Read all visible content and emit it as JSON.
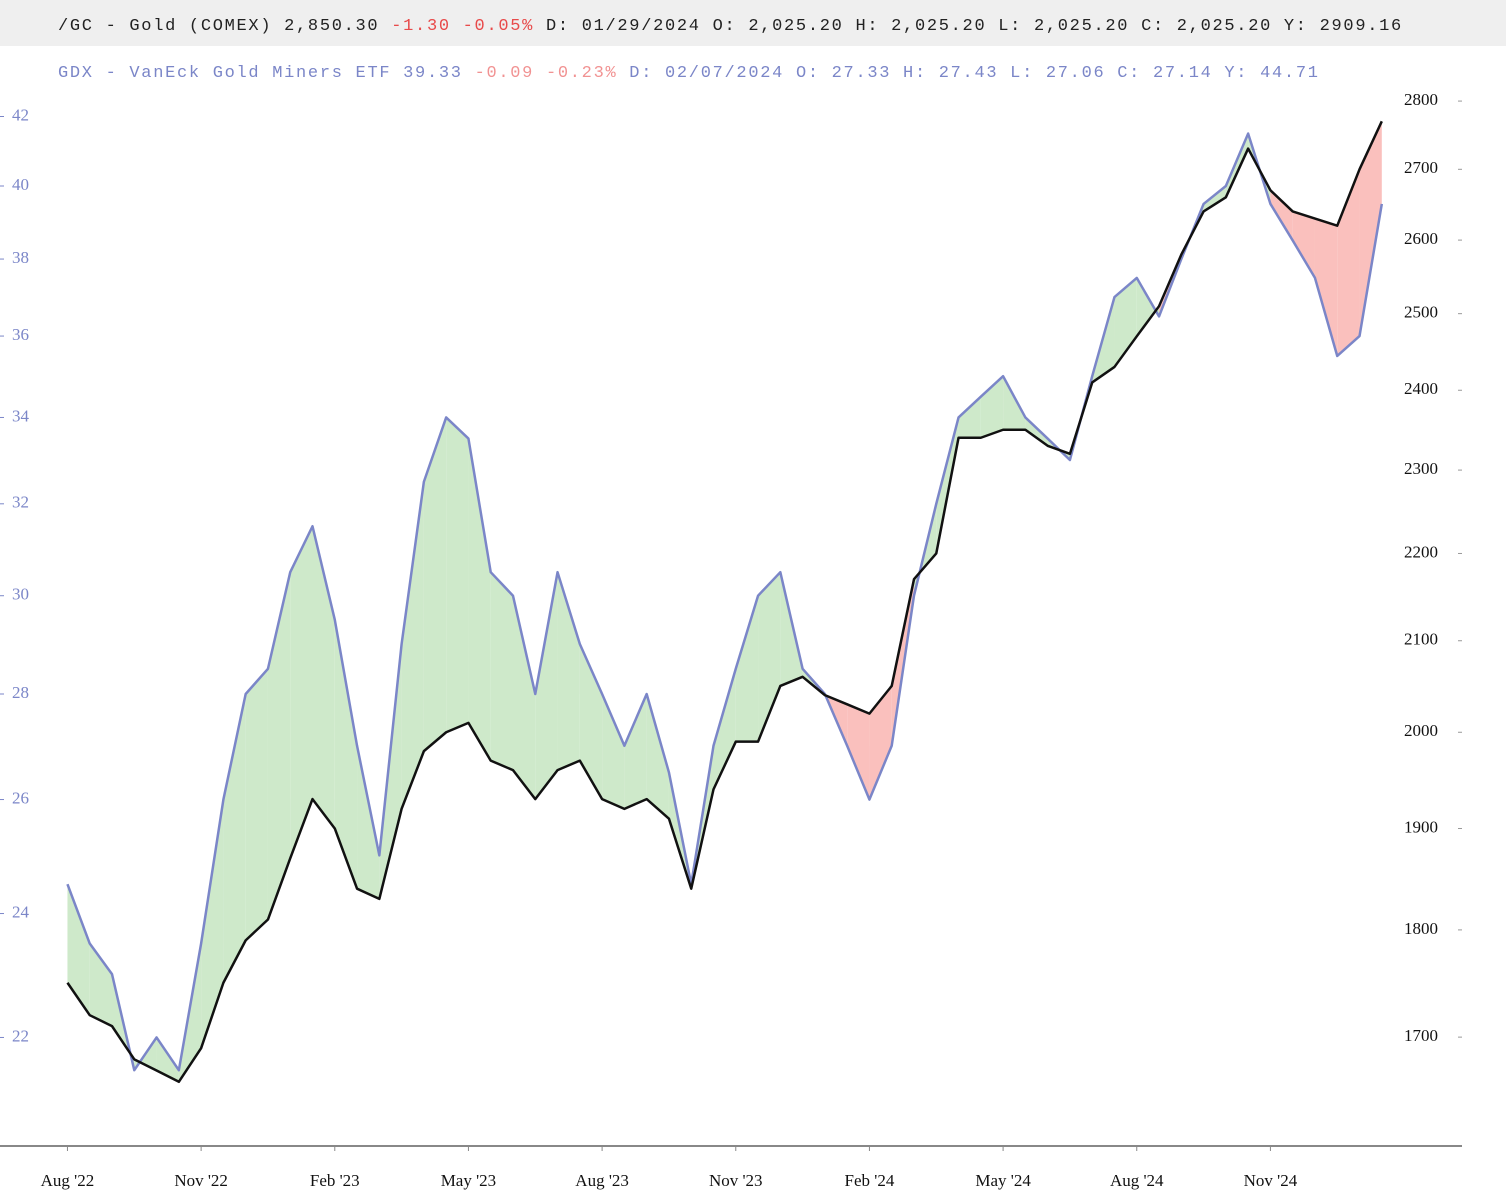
{
  "chart_data": {
    "type": "line",
    "log_scale": true,
    "x": [
      0,
      0.5,
      1,
      1.5,
      2,
      2.5,
      3,
      3.5,
      4,
      4.5,
      5,
      5.5,
      6,
      6.5,
      7,
      7.5,
      8,
      8.5,
      9,
      9.5,
      10,
      10.5,
      11,
      11.5,
      12,
      12.5,
      13,
      13.5,
      14,
      14.5,
      15,
      15.5,
      16,
      16.5,
      17,
      17.5,
      18,
      18.5,
      19,
      19.5,
      20,
      20.5,
      21,
      21.5,
      22,
      22.5,
      23,
      23.5,
      24,
      24.5,
      25,
      25.5,
      26,
      26.5,
      27,
      27.5,
      28,
      28.5,
      29,
      29.5
    ],
    "xlim": [
      -0.1,
      31.3
    ],
    "xticks": [
      {
        "value": 0,
        "label": "Aug '22"
      },
      {
        "value": 3,
        "label": "Nov '22"
      },
      {
        "value": 6,
        "label": "Feb '23"
      },
      {
        "value": 9,
        "label": "May '23"
      },
      {
        "value": 12,
        "label": "Aug '23"
      },
      {
        "value": 15,
        "label": "Nov '23"
      },
      {
        "value": 18,
        "label": "Feb '24"
      },
      {
        "value": 21,
        "label": "May '24"
      },
      {
        "value": 24,
        "label": "Aug '24"
      },
      {
        "value": 27,
        "label": "Nov '24"
      }
    ],
    "ylim": [
      20.4,
      43.7
    ],
    "yticks": [
      22,
      24,
      26,
      28,
      30,
      32,
      34,
      36,
      38,
      40,
      42
    ],
    "y2lim": [
      1605,
      2862
    ],
    "y2ticks": [
      1700,
      1800,
      1900,
      2000,
      2100,
      2200,
      2300,
      2400,
      2500,
      2600,
      2700,
      2800
    ],
    "fill_colors": {
      "above": "#c9e7c4",
      "below": "#f9b9b6"
    },
    "series": [
      {
        "name": "GDX - VanEck Gold Miners ETF",
        "color": "#7b86c8",
        "axis": "y",
        "quote": {
          "last": "39.33",
          "change": "-0.09",
          "change_pct": "-0.23%",
          "date": "D: 02/07/2024",
          "open": "O: 27.33",
          "high": "H: 27.43",
          "low": "L: 27.06",
          "close": "C: 27.14",
          "prev": "Y: 44.71"
        },
        "values": [
          24.5,
          23.5,
          23,
          21.5,
          22,
          21.5,
          23.5,
          26,
          28,
          28.5,
          30.5,
          31.5,
          29.5,
          27,
          25,
          29,
          32.5,
          34,
          33.5,
          30.5,
          30,
          28,
          30.5,
          29,
          28,
          27,
          28,
          26.5,
          24.5,
          27,
          28.5,
          30,
          30.5,
          28.5,
          28,
          27,
          26,
          27,
          30,
          32,
          34,
          34.5,
          35,
          34,
          33.5,
          33,
          35,
          37,
          37.5,
          36.5,
          38,
          39.5,
          40,
          41.5,
          39.5,
          38.5,
          37.5,
          35.5,
          36,
          39.5
        ]
      },
      {
        "name": "/GC - Gold (COMEX)",
        "color": "#111111",
        "axis": "y2",
        "quote": {
          "last": "2,850.30",
          "change": "-1.30",
          "change_pct": "-0.05%",
          "date": "D: 01/29/2024",
          "open": "O: 2,025.20",
          "high": "H: 2,025.20",
          "low": "L: 2,025.20",
          "close": "C: 2,025.20",
          "prev": "Y:  2909.16"
        },
        "values": [
          1750,
          1720,
          1710,
          1680,
          1670,
          1660,
          1690,
          1750,
          1790,
          1810,
          1870,
          1930,
          1900,
          1840,
          1830,
          1920,
          1980,
          2000,
          2010,
          1970,
          1960,
          1930,
          1960,
          1970,
          1930,
          1920,
          1930,
          1910,
          1840,
          1940,
          1990,
          1990,
          2050,
          2060,
          2040,
          2030,
          2020,
          2050,
          2170,
          2200,
          2340,
          2340,
          2350,
          2350,
          2330,
          2320,
          2410,
          2430,
          2470,
          2510,
          2580,
          2640,
          2660,
          2730,
          2670,
          2640,
          2630,
          2620,
          2700,
          2770
        ]
      }
    ],
    "change_color": "#e84a4a"
  }
}
